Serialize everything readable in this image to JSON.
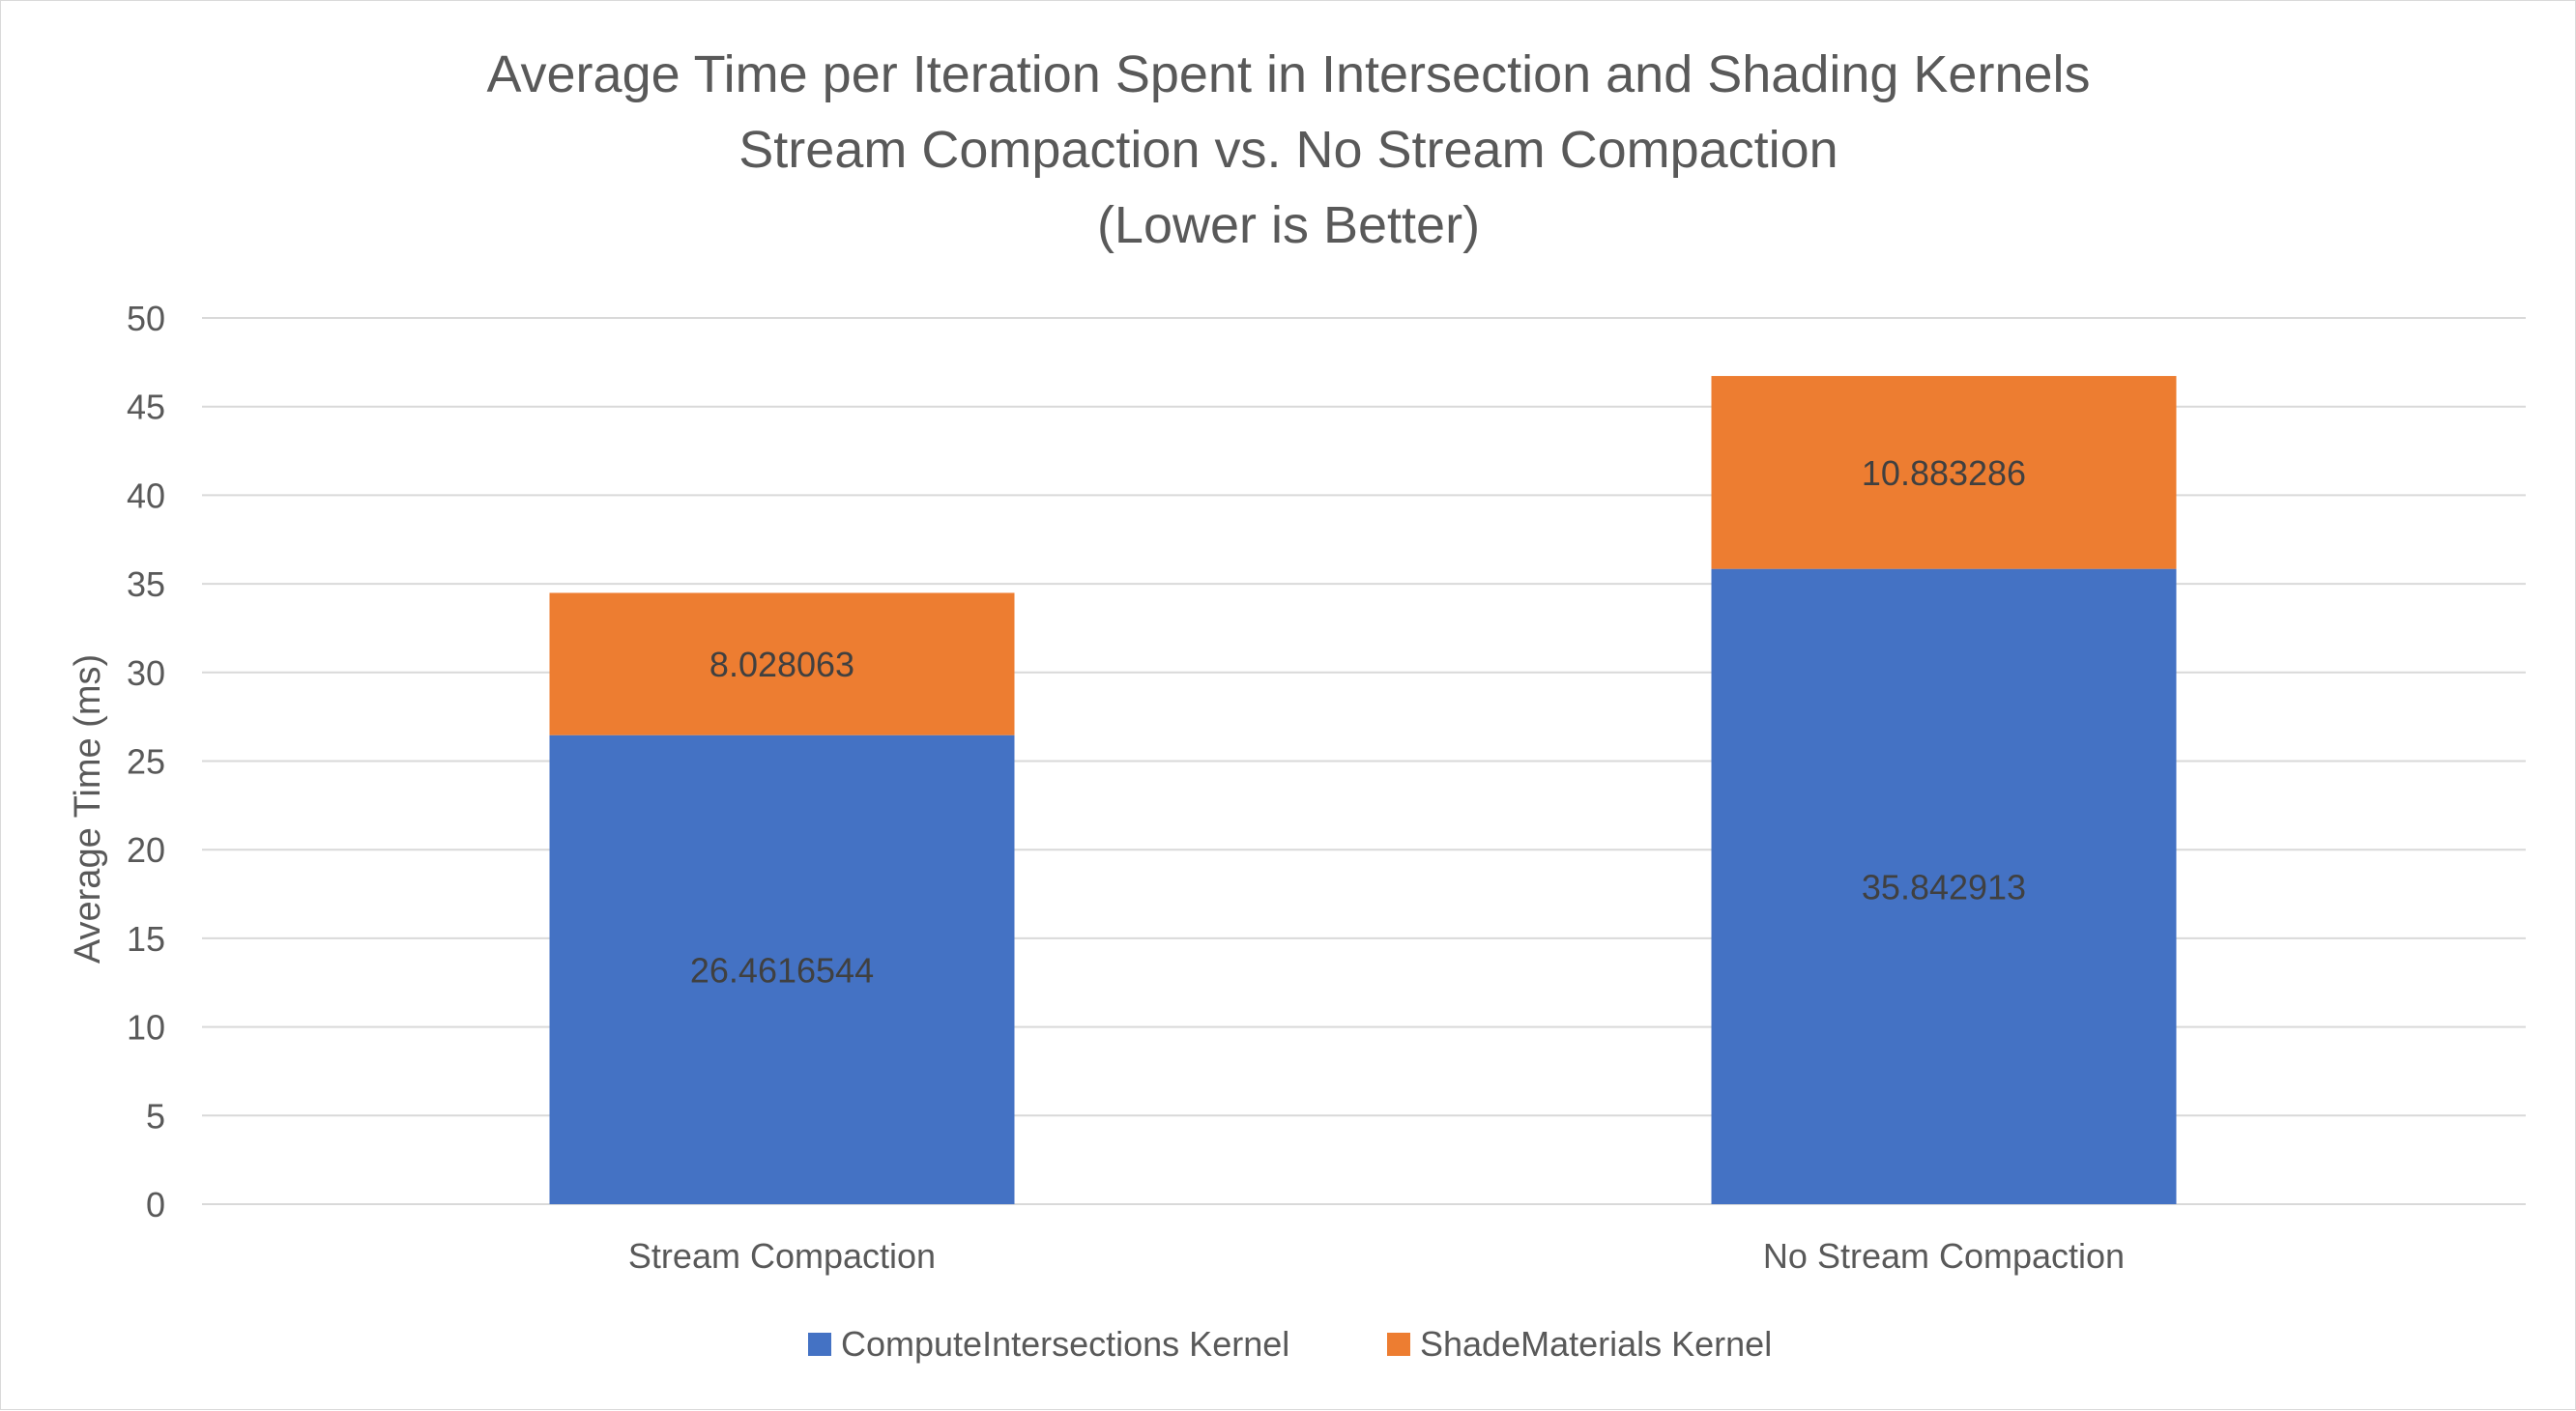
{
  "chart_data": {
    "type": "bar",
    "stacked": true,
    "title": "Average Time per Iteration Spent in Intersection and Shading Kernels",
    "subtitle": "Stream Compaction vs. No Stream Compaction",
    "subtitle2": "(Lower is Better)",
    "xlabel": "",
    "ylabel": "Average Time (ms)",
    "ylim": [
      0,
      50
    ],
    "yticks": [
      0,
      5,
      10,
      15,
      20,
      25,
      30,
      35,
      40,
      45,
      50
    ],
    "grid": true,
    "legend_position": "bottom",
    "categories": [
      "Stream Compaction",
      "No Stream Compaction"
    ],
    "series": [
      {
        "name": "ComputeIntersections Kernel",
        "color": "#4472c4",
        "values": [
          26.4616544,
          35.842913
        ],
        "labels": [
          "26.4616544",
          "35.842913"
        ]
      },
      {
        "name": "ShadeMaterials Kernel",
        "color": "#ed7d31",
        "values": [
          8.028063,
          10.883286
        ],
        "labels": [
          "8.028063",
          "10.883286"
        ]
      }
    ]
  }
}
